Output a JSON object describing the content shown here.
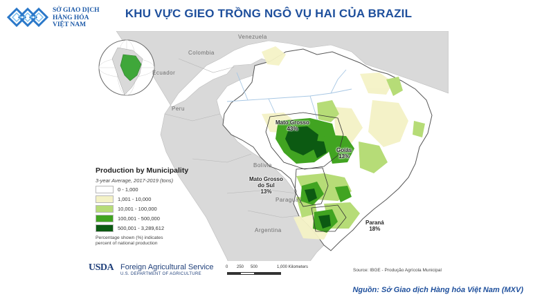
{
  "logo": {
    "line1": "SỞ GIAO DỊCH",
    "line2": "HÀNG HÓA",
    "line3": "VIỆT NAM",
    "color": "#1d5aa8"
  },
  "title": "KHU VỰC GIEO TRỒNG NGÔ VỤ HAI CỦA BRAZIL",
  "map": {
    "countries": {
      "venezuela": "Venezuela",
      "colombia": "Colombia",
      "ecuador": "Ecuador",
      "peru": "Peru",
      "bolivia": "Bolivia",
      "paraguay": "Paraguay",
      "argentina": "Argentina"
    },
    "states": [
      {
        "name": "Mato Grosso",
        "share": "43%"
      },
      {
        "name": "Goiás",
        "share": "13%"
      },
      {
        "name": "Mato Grosso do Sul",
        "line1": "Mato Grosso",
        "line2": "do Sul",
        "share": "13%"
      },
      {
        "name": "Paraná",
        "share": "18%"
      }
    ]
  },
  "legend": {
    "title": "Production by Municipality",
    "subtitle": "3-year Average, 2017-2019 (tons)",
    "classes": [
      {
        "label": "0 - 1,000",
        "color": "#ffffff"
      },
      {
        "label": "1,001 - 10,000",
        "color": "#f4f2c6"
      },
      {
        "label": "10,001 - 100,000",
        "color": "#b6dc77"
      },
      {
        "label": "100,001 - 500,000",
        "color": "#41a421"
      },
      {
        "label": "500,001 - 3,289,612",
        "color": "#0c5a12"
      }
    ],
    "note_line1": "Percentage shown (%) indicates",
    "note_line2": "percent of national production"
  },
  "footer": {
    "usda": "USDA",
    "agency": "Foreign Agricultural Service",
    "department": "U.S. DEPARTMENT OF AGRICULTURE",
    "scale": {
      "ticks": [
        "0",
        "250",
        "500",
        "1,000 Kilometers"
      ]
    },
    "source": "Source: IBGE - Produção Agrícola Municipal"
  },
  "attribution": "Nguồn: Sở Giao dịch Hàng hóa Việt Nam (MXV)"
}
